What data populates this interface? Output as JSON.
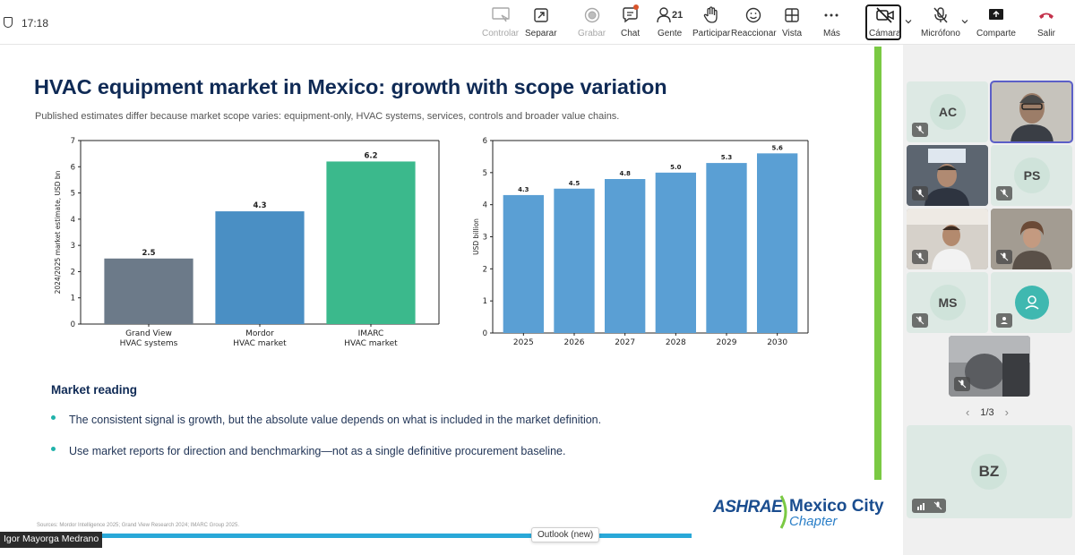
{
  "status": {
    "time": "17:18"
  },
  "toolbar": {
    "items": [
      {
        "label": "Controlar"
      },
      {
        "label": "Separar"
      },
      {
        "label": "Grabar"
      },
      {
        "label": "Chat"
      },
      {
        "label": "Gente",
        "count": "21"
      },
      {
        "label": "Participar"
      },
      {
        "label": "Reaccionar"
      },
      {
        "label": "Vista"
      },
      {
        "label": "Más"
      },
      {
        "label": "Cámara"
      },
      {
        "label": "Micrófono"
      },
      {
        "label": "Comparte"
      },
      {
        "label": "Salir"
      }
    ]
  },
  "slide": {
    "title": "HVAC equipment market in Mexico: growth with scope variation",
    "subtitle": "Published estimates differ because market scope varies: equipment-only, HVAC systems, services, controls and broader value chains.",
    "market_reading": {
      "heading": "Market reading",
      "bullets": [
        "The consistent signal is growth, but the absolute value depends on what is included in the market definition.",
        "Use market reports for direction and benchmarking—not as a single definitive procurement baseline."
      ]
    },
    "sources": "Sources: Mordor Intelligence 2025; Grand View Research 2024; IMARC Group 2025.",
    "logo": {
      "brand": "ASHRAE",
      "line1": "Mexico City",
      "line2": "Chapter"
    },
    "colors": {
      "title": "#0f2a55",
      "accent_green": "#7ac943",
      "bullet_dot": "#20b2aa"
    }
  },
  "chart_data": [
    {
      "type": "bar",
      "categories": [
        "Grand View\nHVAC systems",
        "Mordor\nHVAC market",
        "IMARC\nHVAC market"
      ],
      "values": [
        2.5,
        4.3,
        6.2
      ],
      "value_labels": [
        "2.5",
        "4.3",
        "6.2"
      ],
      "colors": [
        "#6c7a89",
        "#4a8fc4",
        "#3bb98c"
      ],
      "ylabel": "2024/2025 market estimate, USD bn",
      "ylim": [
        0,
        7
      ],
      "yticks": [
        "0",
        "1",
        "2",
        "3",
        "4",
        "5",
        "6",
        "7"
      ],
      "grid": false
    },
    {
      "type": "bar",
      "categories": [
        "2025",
        "2026",
        "2027",
        "2028",
        "2029",
        "2030"
      ],
      "values": [
        4.3,
        4.5,
        4.8,
        5.0,
        5.3,
        5.6
      ],
      "value_labels": [
        "4.3",
        "4.5",
        "4.8",
        "5.0",
        "5.3",
        "5.6"
      ],
      "colors": [
        "#5a9fd4"
      ],
      "ylabel": "USD billion",
      "ylim": [
        0,
        6
      ],
      "yticks": [
        "0",
        "1",
        "2",
        "3",
        "4",
        "5",
        "6"
      ],
      "grid": false
    }
  ],
  "presenter": {
    "name": "Igor Mayorga Medrano"
  },
  "tooltip": {
    "text": "Outlook (new)"
  },
  "participants": {
    "tiles": [
      {
        "initials": "AC"
      },
      {
        "initials": ""
      },
      {
        "initials": ""
      },
      {
        "initials": "PS"
      },
      {
        "initials": ""
      },
      {
        "initials": ""
      },
      {
        "initials": "MS"
      },
      {
        "initials": ""
      },
      {
        "initials": ""
      },
      {
        "initials": "BZ"
      }
    ],
    "pager": "1/3"
  }
}
